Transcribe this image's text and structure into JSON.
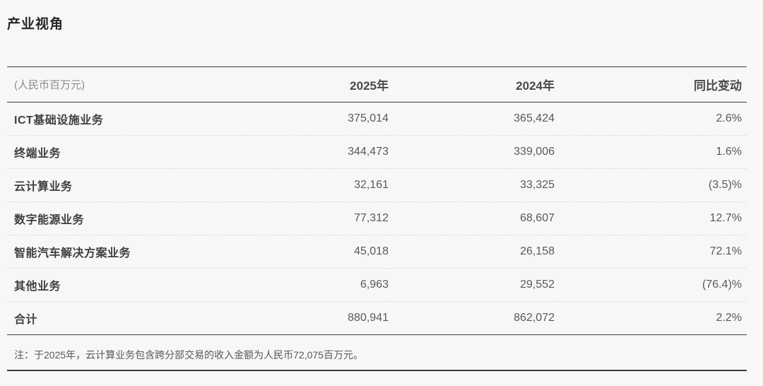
{
  "title": "产业视角",
  "table": {
    "unit_label": "(人民币百万元)",
    "columns": {
      "y2025": "2025年",
      "y2024": "2024年",
      "change": "同比变动"
    },
    "rows": [
      {
        "label": "ICT基础设施业务",
        "v2025": "375,014",
        "v2024": "365,424",
        "change": "2.6%"
      },
      {
        "label": "终端业务",
        "v2025": "344,473",
        "v2024": "339,006",
        "change": "1.6%"
      },
      {
        "label": "云计算业务",
        "v2025": "32,161",
        "v2024": "33,325",
        "change": "(3.5)%"
      },
      {
        "label": "数字能源业务",
        "v2025": "77,312",
        "v2024": "68,607",
        "change": "12.7%"
      },
      {
        "label": "智能汽车解决方案业务",
        "v2025": "45,018",
        "v2024": "26,158",
        "change": "72.1%"
      },
      {
        "label": "其他业务",
        "v2025": "6,963",
        "v2024": "29,552",
        "change": "(76.4)%"
      }
    ],
    "total": {
      "label": "合计",
      "v2025": "880,941",
      "v2024": "862,072",
      "change": "2.2%"
    }
  },
  "footnote": "注：于2025年，云计算业务包含跨分部交易的收入金额为人民币72,075百万元。",
  "colors": {
    "background": "#f7f7f7",
    "rule_dark": "#404040",
    "rule_dashed": "#dcdcdc",
    "title_text": "#262626",
    "label_text": "#404040",
    "value_text": "#595959",
    "muted_text": "#8c8c8c"
  }
}
